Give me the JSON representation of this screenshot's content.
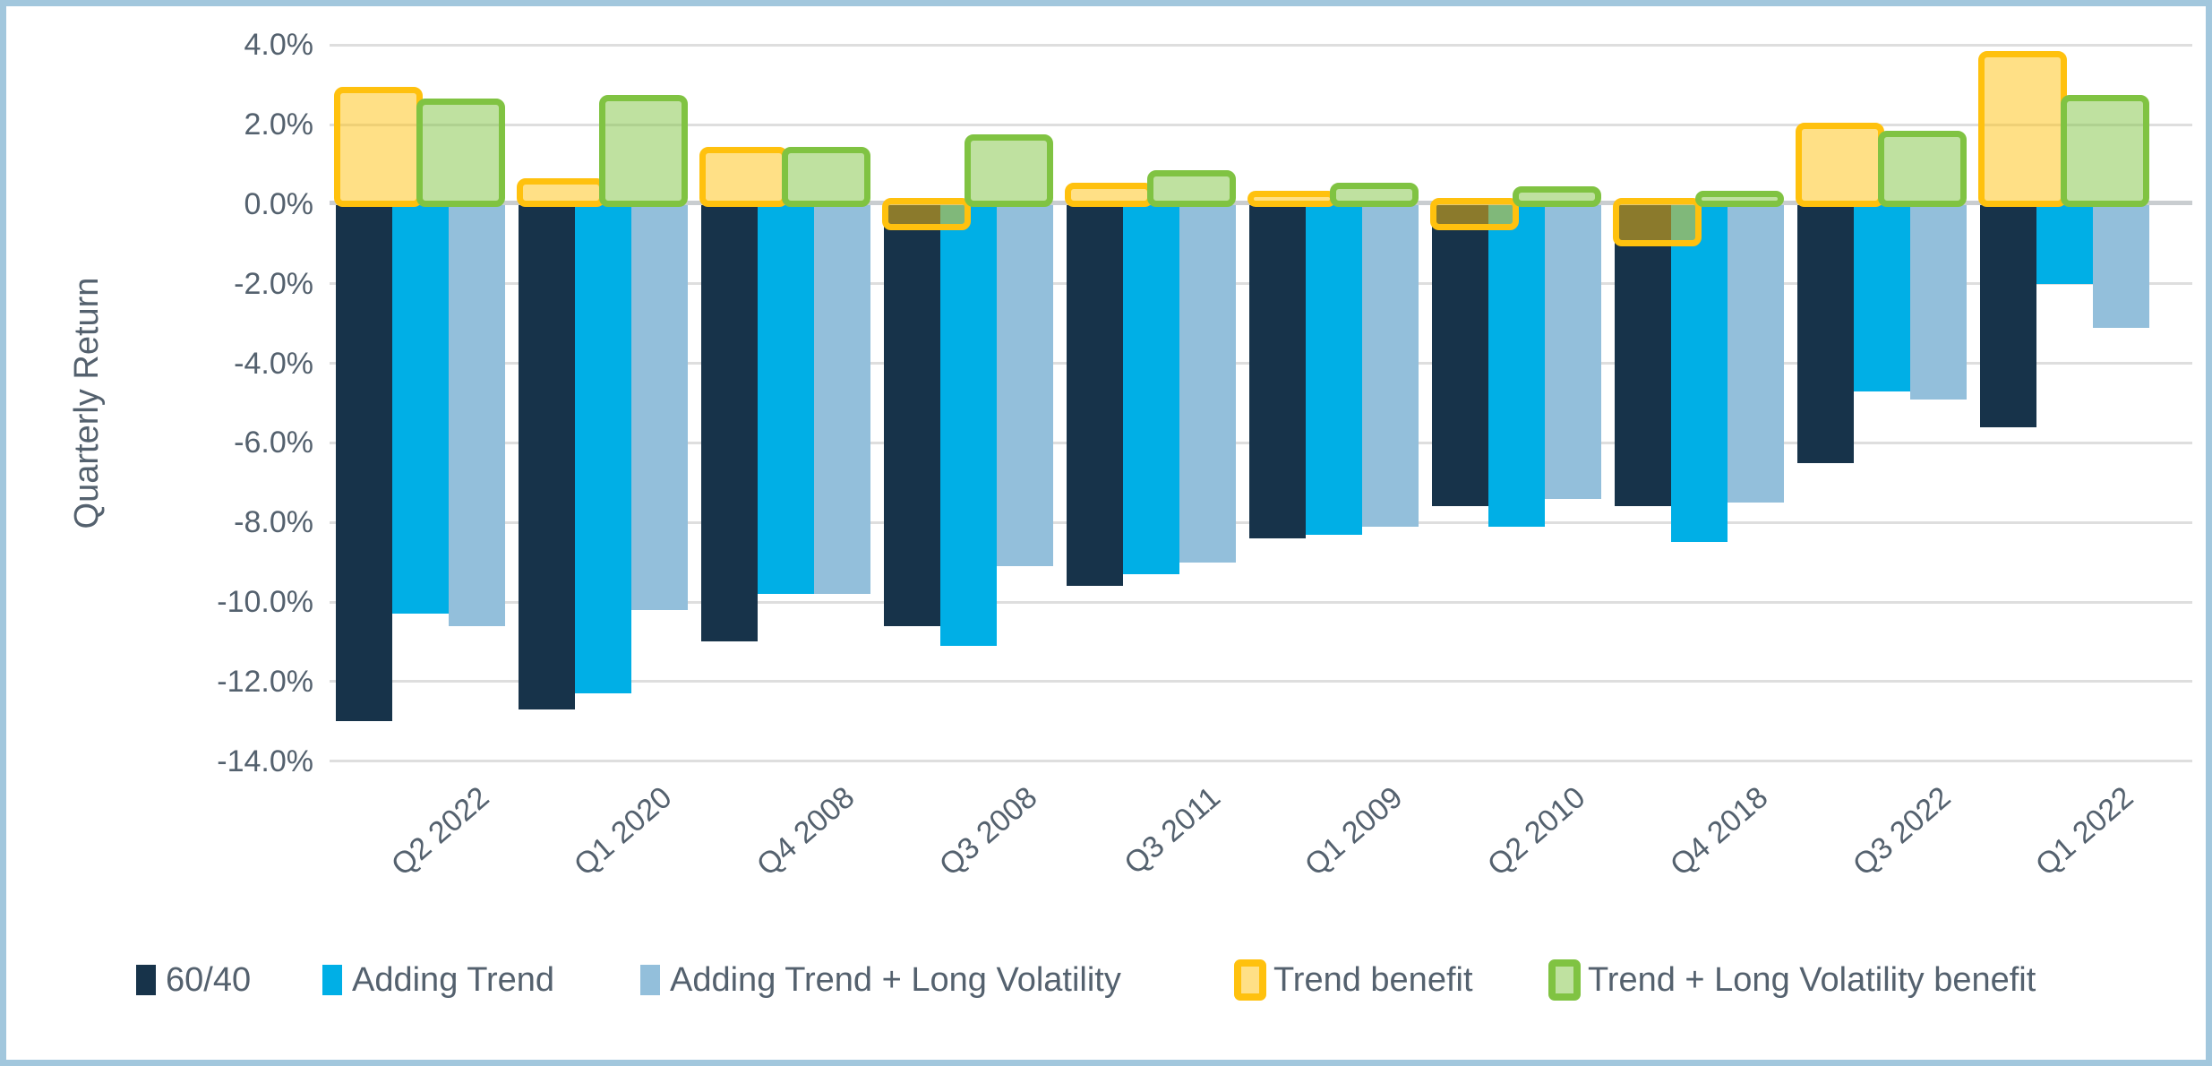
{
  "chart_data": {
    "type": "bar",
    "title": "",
    "ylabel": "Quarterly Return",
    "xlabel": "",
    "categories": [
      "Q2 2022",
      "Q1 2020",
      "Q4 2008",
      "Q3 2008",
      "Q3 2011",
      "Q1 2009",
      "Q2 2010",
      "Q4 2018",
      "Q3 2022",
      "Q1 2022"
    ],
    "series": [
      {
        "name": "60/40",
        "kind": "bar",
        "color": "#17334A",
        "values": [
          -13.0,
          -12.7,
          -11.0,
          -10.6,
          -9.6,
          -8.4,
          -7.6,
          -7.6,
          -6.5,
          -5.6
        ]
      },
      {
        "name": "Adding Trend",
        "kind": "bar",
        "color": "#00AFE6",
        "values": [
          -10.3,
          -12.3,
          -9.8,
          -11.1,
          -9.3,
          -8.3,
          -8.1,
          -8.5,
          -4.7,
          -2.0
        ]
      },
      {
        "name": "Adding Trend + Long Volatility",
        "kind": "bar",
        "color": "#93BFDB",
        "values": [
          -10.6,
          -10.2,
          -9.8,
          -9.1,
          -9.0,
          -8.1,
          -7.4,
          -7.5,
          -4.9,
          -3.1
        ]
      },
      {
        "name": "Trend benefit",
        "kind": "outline-box",
        "color": "#FFC10E",
        "fill": "rgba(255,193,14,0.5)",
        "values": [
          2.7,
          0.4,
          1.2,
          -0.5,
          0.3,
          0.1,
          -0.5,
          -0.9,
          1.8,
          3.6
        ]
      },
      {
        "name": "Trend + Long Volatility benefit",
        "kind": "outline-box",
        "color": "#80C342",
        "fill": "rgba(128,195,66,0.5)",
        "values": [
          2.4,
          2.5,
          1.2,
          1.5,
          0.6,
          0.3,
          0.2,
          0.1,
          1.6,
          2.5
        ]
      }
    ],
    "y_ticks": [
      "4.0%",
      "2.0%",
      "0.0%",
      "-2.0%",
      "-4.0%",
      "-6.0%",
      "-8.0%",
      "-10.0%",
      "-12.0%",
      "-14.0%"
    ],
    "ylim": [
      -14,
      4
    ],
    "grid": true,
    "legend_position": "bottom"
  },
  "colors": {
    "frame": "#A2C7DD",
    "gridline": "#DEDEDE",
    "zero_line": "#C9CDD0",
    "axis_text": "#54616E"
  }
}
